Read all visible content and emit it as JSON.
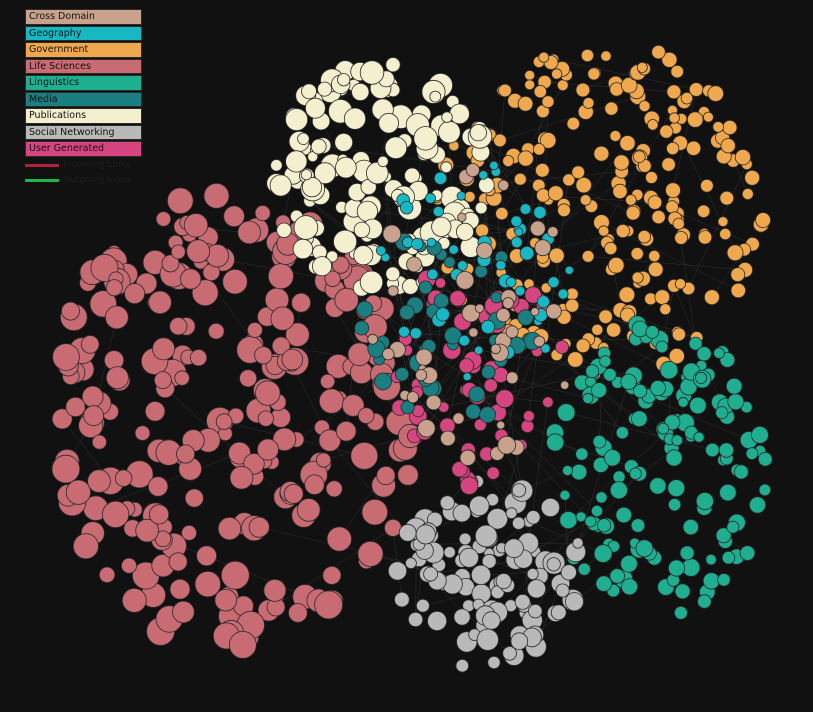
{
  "legend": {
    "categories": [
      {
        "key": "cross-domain",
        "label": "Cross Domain",
        "color": "#c8a28c"
      },
      {
        "key": "geography",
        "label": "Geography",
        "color": "#17b8c4"
      },
      {
        "key": "government",
        "label": "Government",
        "color": "#f0a84e"
      },
      {
        "key": "life-sciences",
        "label": "Life Sciences",
        "color": "#c86b73"
      },
      {
        "key": "linguistics",
        "label": "Linguistics",
        "color": "#1fae8f"
      },
      {
        "key": "media",
        "label": "Media",
        "color": "#1a7f80"
      },
      {
        "key": "publications",
        "label": "Publications",
        "color": "#f3efcf"
      },
      {
        "key": "social-networking",
        "label": "Social Networking",
        "color": "#b9b9b9"
      },
      {
        "key": "user-generated",
        "label": "User Generated",
        "color": "#d6457f"
      }
    ],
    "links": [
      {
        "label": "Incoming Links",
        "color": "#b0213e"
      },
      {
        "label": "Outgoing Links",
        "color": "#1fb54a"
      }
    ]
  }
}
